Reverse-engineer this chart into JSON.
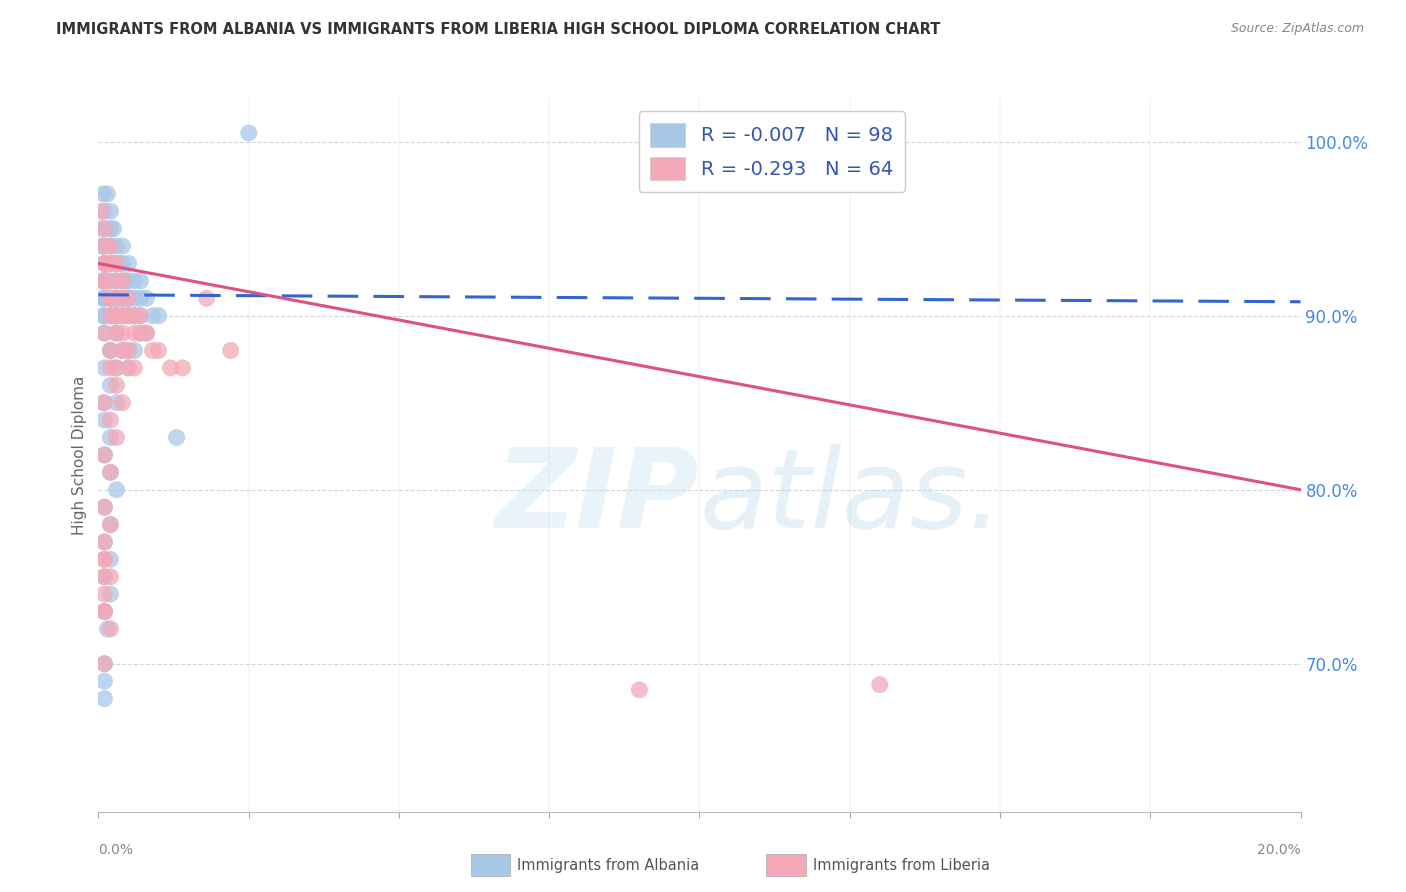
{
  "title": "IMMIGRANTS FROM ALBANIA VS IMMIGRANTS FROM LIBERIA HIGH SCHOOL DIPLOMA CORRELATION CHART",
  "source": "Source: ZipAtlas.com",
  "ylabel": "High School Diploma",
  "albania_R": -0.007,
  "albania_N": 98,
  "liberia_R": -0.293,
  "liberia_N": 64,
  "albania_color": "#a8c8e8",
  "liberia_color": "#f4a8b8",
  "albania_line_color": "#3366cc",
  "liberia_line_color": "#e05080",
  "right_ytick_labels": [
    "100.0%",
    "90.0%",
    "80.0%",
    "70.0%"
  ],
  "right_ytick_values": [
    1.0,
    0.9,
    0.8,
    0.7
  ],
  "title_color": "#333333",
  "source_color": "#888888",
  "legend_label_color": "#3355bb",
  "background_color": "#ffffff",
  "grid_color": "#cccccc",
  "legend_albania": "Immigrants from Albania",
  "legend_liberia": "Immigrants from Liberia",
  "xmin": 0.0,
  "xmax": 0.2,
  "ymin": 0.615,
  "ymax": 1.025,
  "albania_line_x": [
    0.0,
    0.2
  ],
  "albania_line_y": [
    0.912,
    0.908
  ],
  "liberia_line_x": [
    0.0,
    0.2
  ],
  "liberia_line_y": [
    0.93,
    0.8
  ],
  "albania_pts_x": [
    0.0008,
    0.001,
    0.0012,
    0.0015,
    0.002,
    0.002,
    0.002,
    0.0022,
    0.0025,
    0.003,
    0.003,
    0.003,
    0.003,
    0.0035,
    0.004,
    0.004,
    0.004,
    0.004,
    0.0045,
    0.005,
    0.005,
    0.005,
    0.006,
    0.006,
    0.006,
    0.007,
    0.007,
    0.008,
    0.009,
    0.01,
    0.0005,
    0.001,
    0.001,
    0.0015,
    0.002,
    0.0025,
    0.003,
    0.003,
    0.004,
    0.004,
    0.005,
    0.005,
    0.006,
    0.007,
    0.008,
    0.0008,
    0.001,
    0.0012,
    0.002,
    0.002,
    0.003,
    0.003,
    0.004,
    0.005,
    0.006,
    0.0005,
    0.001,
    0.002,
    0.003,
    0.004,
    0.005,
    0.006,
    0.007,
    0.0005,
    0.001,
    0.002,
    0.003,
    0.004,
    0.005,
    0.001,
    0.002,
    0.003,
    0.001,
    0.002,
    0.003,
    0.0008,
    0.001,
    0.002,
    0.001,
    0.002,
    0.003,
    0.001,
    0.002,
    0.001,
    0.002,
    0.001,
    0.002,
    0.001,
    0.0015,
    0.001,
    0.001,
    0.001,
    0.0008,
    0.0008,
    0.025,
    0.013,
    0.001,
    0.002
  ],
  "albania_pts_y": [
    0.97,
    0.96,
    0.95,
    0.97,
    0.96,
    0.95,
    0.94,
    0.93,
    0.95,
    0.94,
    0.93,
    0.92,
    0.91,
    0.93,
    0.94,
    0.93,
    0.92,
    0.91,
    0.92,
    0.93,
    0.92,
    0.91,
    0.92,
    0.91,
    0.9,
    0.92,
    0.91,
    0.91,
    0.9,
    0.9,
    0.95,
    0.94,
    0.93,
    0.92,
    0.91,
    0.9,
    0.91,
    0.9,
    0.91,
    0.9,
    0.91,
    0.9,
    0.9,
    0.9,
    0.89,
    0.91,
    0.9,
    0.92,
    0.91,
    0.9,
    0.9,
    0.89,
    0.88,
    0.88,
    0.88,
    0.94,
    0.93,
    0.92,
    0.91,
    0.91,
    0.9,
    0.9,
    0.89,
    0.92,
    0.91,
    0.9,
    0.89,
    0.88,
    0.87,
    0.89,
    0.88,
    0.87,
    0.87,
    0.86,
    0.85,
    0.85,
    0.84,
    0.83,
    0.82,
    0.81,
    0.8,
    0.79,
    0.78,
    0.77,
    0.76,
    0.75,
    0.74,
    0.73,
    0.72,
    0.7,
    0.69,
    0.68,
    0.91,
    0.9,
    1.005,
    0.83,
    0.92,
    0.88
  ],
  "liberia_pts_x": [
    0.0005,
    0.001,
    0.001,
    0.0015,
    0.002,
    0.002,
    0.003,
    0.003,
    0.003,
    0.004,
    0.004,
    0.004,
    0.005,
    0.005,
    0.006,
    0.006,
    0.007,
    0.007,
    0.008,
    0.009,
    0.01,
    0.012,
    0.014,
    0.018,
    0.022,
    0.001,
    0.001,
    0.002,
    0.002,
    0.003,
    0.003,
    0.004,
    0.005,
    0.006,
    0.001,
    0.002,
    0.003,
    0.004,
    0.005,
    0.002,
    0.003,
    0.004,
    0.001,
    0.002,
    0.003,
    0.001,
    0.002,
    0.003,
    0.001,
    0.002,
    0.001,
    0.002,
    0.001,
    0.002,
    0.001,
    0.002,
    0.001,
    0.001,
    0.001,
    0.001,
    0.001,
    0.001,
    0.13,
    0.09
  ],
  "liberia_pts_y": [
    0.96,
    0.95,
    0.94,
    0.93,
    0.94,
    0.93,
    0.93,
    0.92,
    0.91,
    0.92,
    0.91,
    0.9,
    0.91,
    0.9,
    0.9,
    0.89,
    0.9,
    0.89,
    0.89,
    0.88,
    0.88,
    0.87,
    0.87,
    0.91,
    0.88,
    0.93,
    0.92,
    0.91,
    0.9,
    0.9,
    0.89,
    0.88,
    0.87,
    0.87,
    0.92,
    0.91,
    0.9,
    0.89,
    0.88,
    0.87,
    0.86,
    0.85,
    0.89,
    0.88,
    0.87,
    0.85,
    0.84,
    0.83,
    0.82,
    0.81,
    0.79,
    0.78,
    0.76,
    0.75,
    0.73,
    0.72,
    0.7,
    0.77,
    0.76,
    0.75,
    0.74,
    0.73,
    0.688,
    0.685
  ]
}
